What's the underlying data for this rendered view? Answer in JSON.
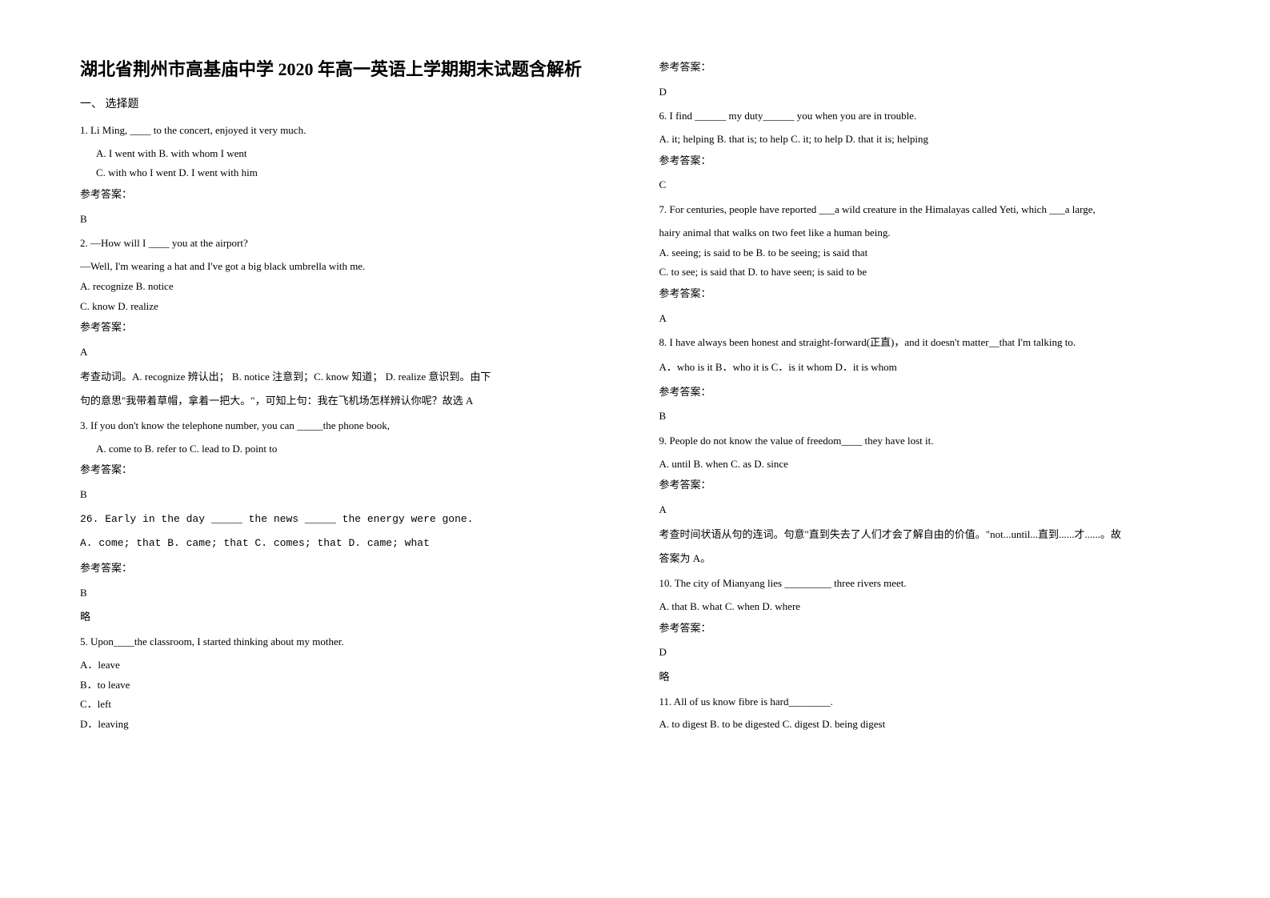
{
  "title": "湖北省荆州市高基庙中学 2020 年高一英语上学期期末试题含解析",
  "section1": "一、 选择题",
  "answerLabel": "参考答案：",
  "left": {
    "q1": {
      "stem": "1. Li Ming, ____ to the concert, enjoyed it very much.",
      "optA": "A. I went with            B. with whom I went",
      "optB": "C. with who I went  D. I went with him",
      "answer": "B"
    },
    "q2": {
      "stem": "2. —How will I ____ you at the airport?",
      "line2": "—Well, I'm wearing a hat and I've got a big black umbrella with me.",
      "opts": "A. recognize    B. notice",
      "opts2": "C. know    D. realize",
      "answer": "A",
      "expl1": "考查动词。A. recognize 辨认出；        B. notice 注意到；C. know 知道；    D. realize 意识到。由下",
      "expl2": "句的意思\"我带着草帽，拿着一把大。\"，可知上句：我在飞机场怎样辨认你呢？故选 A"
    },
    "q3": {
      "stem": "3. If you don't know the telephone number, you can _____the phone book,",
      "opts": "A. come to   B. refer to   C. lead to   D. point to",
      "answer": "B"
    },
    "q4": {
      "stem": "26. Early in the day _____ the news _____ the energy were gone.",
      "opts": "   A. come; that        B. came; that         C. comes; that             D. came; what",
      "answer": "B",
      "expl": "略"
    },
    "q5": {
      "stem": "5. Upon____the classroom, I started thinking about my mother.",
      "optA": "A．leave",
      "optB": "B．to leave",
      "optC": "C．left",
      "optD": "D．leaving"
    }
  },
  "right": {
    "q5answer": "D",
    "q6": {
      "stem": " 6.  I find ______ my duty______ you when you are in trouble.",
      "opts": "   A. it; helping   B. that is; to help   C. it; to help  D. that it is; helping",
      "answer": "C"
    },
    "q7": {
      "stem": "7. For centuries, people have reported ___a wild creature in the Himalayas called Yeti, which ___a large,",
      "line2": "hairy animal that walks on two feet like a human being.",
      "optA": "A. seeing; is said to be    B. to be seeing; is said that",
      "optB": "C. to see; is said that     D. to have seen; is said to be",
      "answer": "A"
    },
    "q8": {
      "stem": "8. I have always been honest and straight-forward(正直)，and it doesn't matter__that I'm talking to.",
      "opts": "A．who is it   B．who it is   C．is it whom  D．it is whom",
      "answer": "B"
    },
    "q9": {
      "stem": "9. People do not know the value of freedom____ they have lost it.",
      "opts": "A. until    B. when    C. as    D. since",
      "answer": "A",
      "expl1": "考查时间状语从句的连词。句意\"直到失去了人们才会了解自由的价值。\"not...until...直到......才......。故",
      "expl2": "答案为 A。"
    },
    "q10": {
      "stem": "10. The city of Mianyang lies _________ three rivers meet.",
      "opts": "A. that                                     B. what                               C. when                  D. where",
      "answer": "D",
      "expl": "略"
    },
    "q11": {
      "stem": "11. All of us know fibre is hard________.",
      "opts": "   A. to digest      B. to be digested   C. digest        D. being digest"
    }
  }
}
